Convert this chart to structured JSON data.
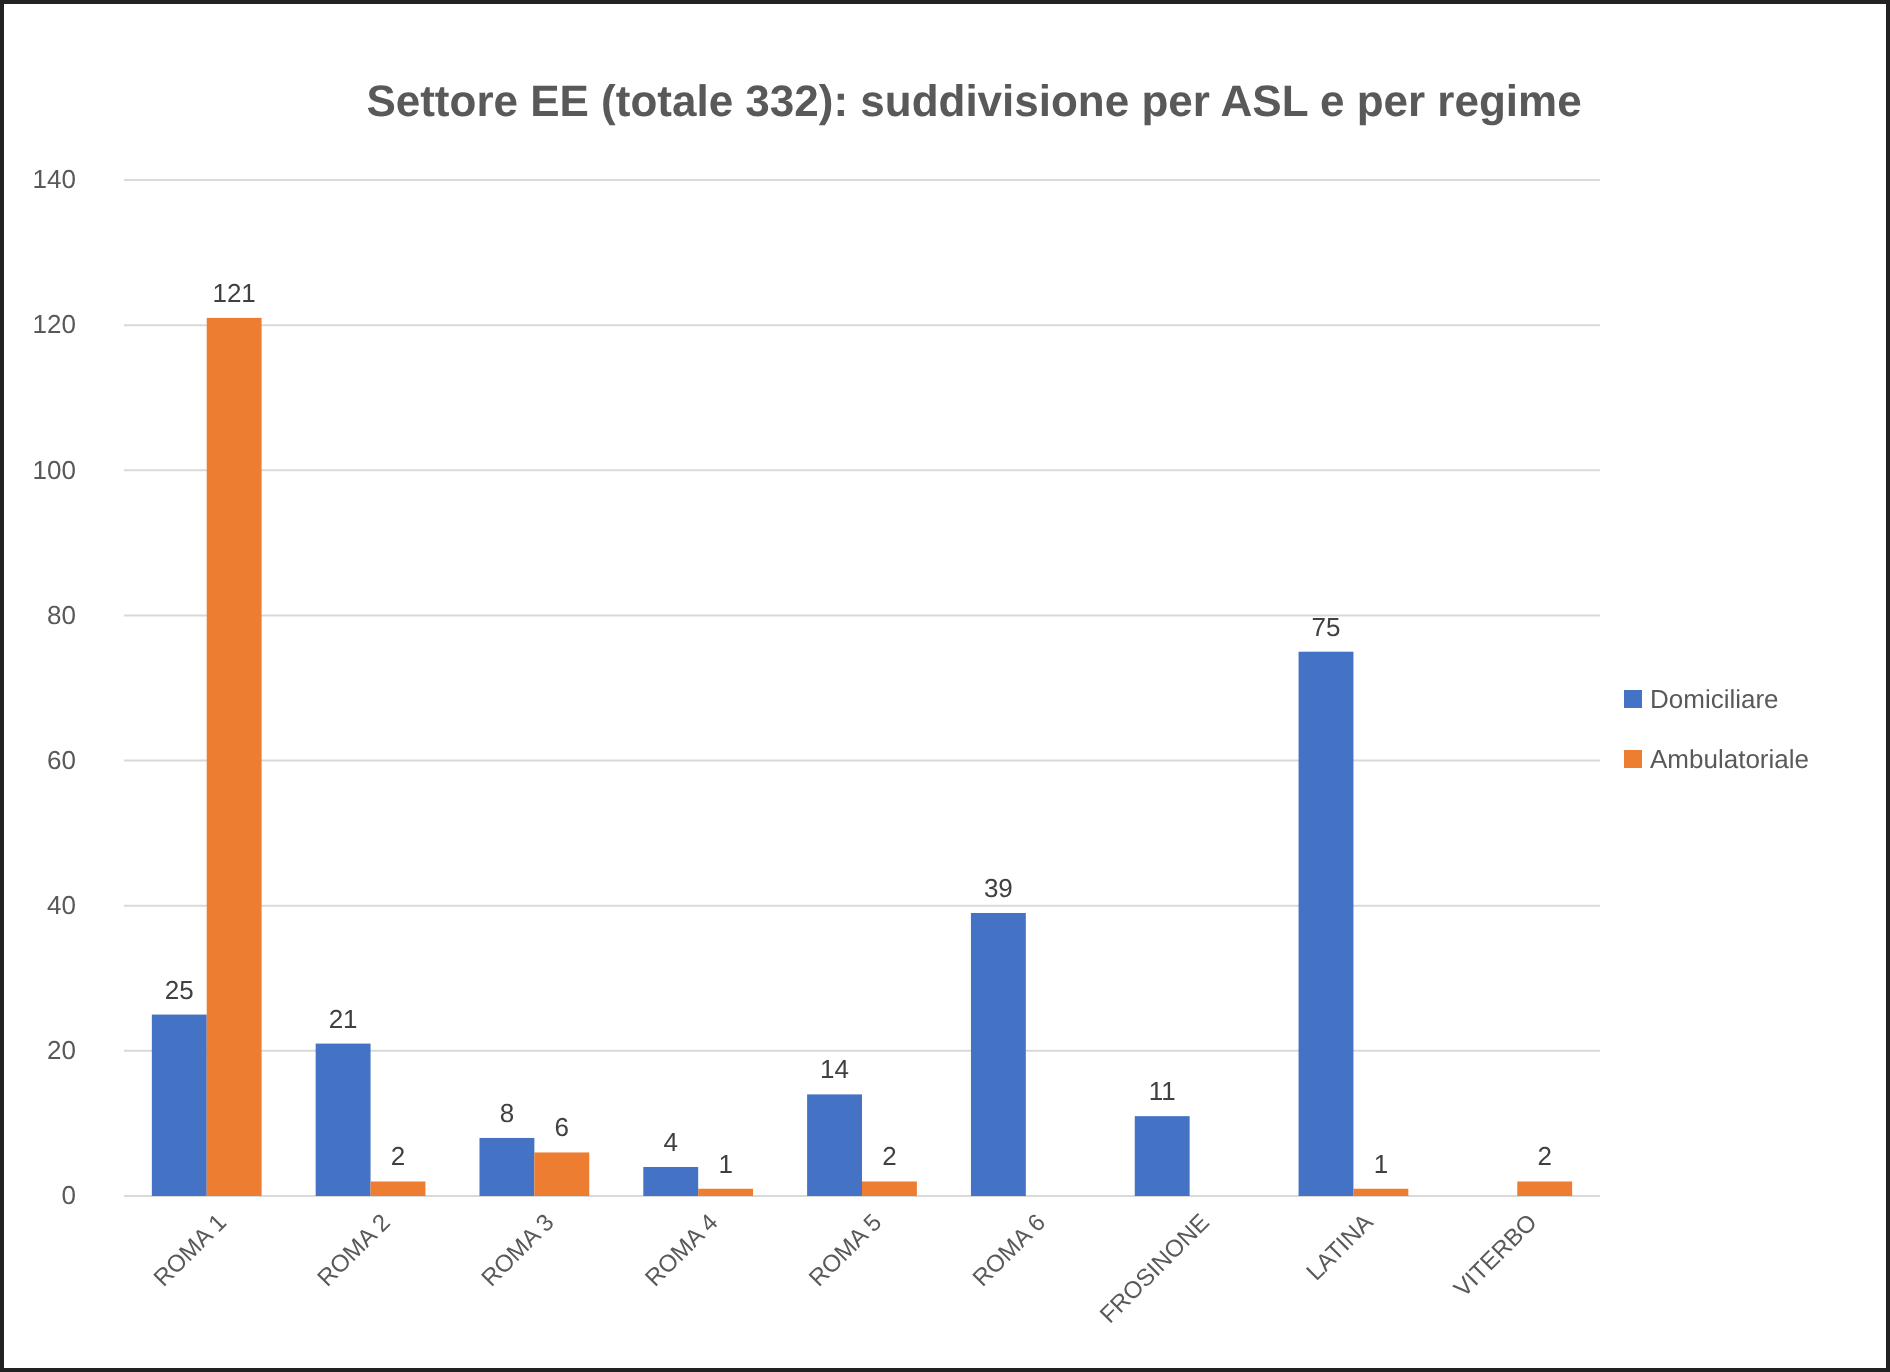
{
  "chart_data": {
    "type": "bar",
    "title": "Settore EE (totale 332): suddivisione per ASL e per regime",
    "categories": [
      "ROMA 1",
      "ROMA 2",
      "ROMA 3",
      "ROMA 4",
      "ROMA 5",
      "ROMA 6",
      "FROSINONE",
      "LATINA",
      "VITERBO"
    ],
    "series": [
      {
        "name": "Domiciliare",
        "color": "#4472c4",
        "values": [
          25,
          21,
          8,
          4,
          14,
          39,
          11,
          75,
          null
        ]
      },
      {
        "name": "Ambulatoriale",
        "color": "#ed7d31",
        "values": [
          121,
          2,
          6,
          1,
          2,
          null,
          null,
          1,
          2
        ]
      }
    ],
    "ylim": [
      0,
      140
    ],
    "yticks": [
      0,
      20,
      40,
      60,
      80,
      100,
      120,
      140
    ],
    "grid": "y",
    "legend": "right",
    "data_labels": true
  }
}
